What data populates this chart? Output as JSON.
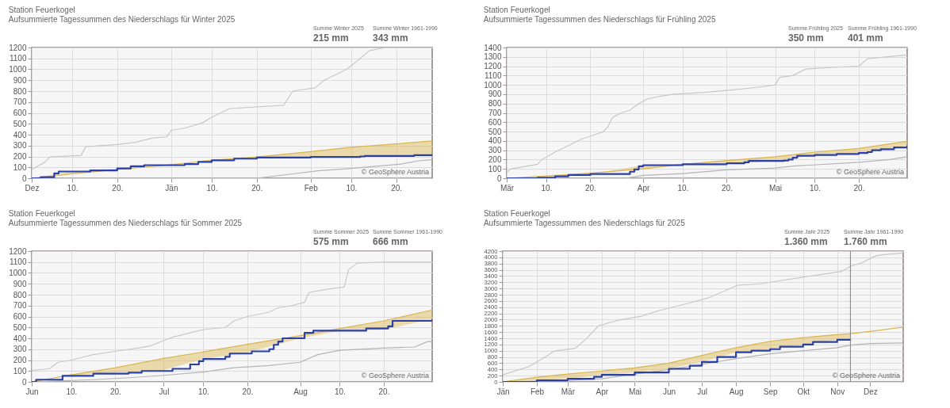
{
  "chart_data": [
    {
      "type": "line",
      "title": "Station Feuerkogel",
      "subtitle": "Aufsummierte Tagessummen des Niederschlags für Winter 2025",
      "annotations": [
        "Summe Winter 2025",
        "215 mm",
        "Summe Winter 1961-1990",
        "343 mm",
        "© GeoSphere Austria"
      ],
      "xlim": [
        "2024-12-01",
        "2025-02-28"
      ],
      "xticks": [
        {
          "value": "2024-12-01",
          "label": "Dez"
        },
        {
          "value": "2024-12-10",
          "label": "10."
        },
        {
          "value": "2024-12-20",
          "label": "20."
        },
        {
          "value": "2025-01-01",
          "label": "Jän"
        },
        {
          "value": "2025-01-10",
          "label": "10."
        },
        {
          "value": "2025-01-20",
          "label": "20."
        },
        {
          "value": "2025-02-01",
          "label": "Feb"
        },
        {
          "value": "2025-02-10",
          "label": "10."
        },
        {
          "value": "2025-02-20",
          "label": "20."
        }
      ],
      "ylim": [
        0,
        1200
      ],
      "yticks": [
        0,
        100,
        200,
        300,
        400,
        500,
        600,
        700,
        800,
        900,
        1000,
        1100,
        1200
      ],
      "grid": true,
      "series": [
        {
          "type": "line",
          "color": "#c8c8c8",
          "x": [
            "2024-12-01",
            "2024-12-04",
            "2024-12-05",
            "2024-12-12",
            "2024-12-13",
            "2024-12-20",
            "2024-12-24",
            "2024-12-28",
            "2024-12-31",
            "2025-01-01",
            "2025-01-04",
            "2025-01-08",
            "2025-01-10",
            "2025-01-14",
            "2025-01-26",
            "2025-01-28",
            "2025-02-02",
            "2025-02-04",
            "2025-02-09",
            "2025-02-12",
            "2025-02-14",
            "2025-02-17"
          ],
          "values": [
            80,
            150,
            195,
            210,
            290,
            310,
            330,
            370,
            380,
            440,
            460,
            510,
            560,
            640,
            670,
            800,
            830,
            900,
            1000,
            1100,
            1170,
            1195
          ]
        },
        {
          "type": "line",
          "color": "#b4b4b4",
          "x": [
            "2024-12-01",
            "2025-01-20",
            "2025-01-28",
            "2025-02-03",
            "2025-02-10",
            "2025-02-21",
            "2025-02-25",
            "2025-02-28"
          ],
          "values": [
            0,
            0,
            40,
            70,
            90,
            130,
            160,
            170
          ]
        },
        {
          "type": "line",
          "color": "#d9b650",
          "x": [
            "2024-12-01",
            "2024-12-10",
            "2024-12-20",
            "2025-01-01",
            "2025-01-10",
            "2025-01-20",
            "2025-02-01",
            "2025-02-10",
            "2025-02-20",
            "2025-02-28"
          ],
          "values": [
            0,
            40,
            80,
            125,
            165,
            195,
            245,
            285,
            315,
            343
          ],
          "lower": [
            0,
            62,
            90,
            120,
            165,
            190,
            195,
            195,
            200,
            215
          ],
          "upper": [
            0,
            40,
            80,
            125,
            165,
            195,
            245,
            285,
            315,
            343
          ]
        },
        {
          "type": "step",
          "color": "#2b3fa8",
          "x": [
            "2024-12-01",
            "2024-12-03",
            "2024-12-06",
            "2024-12-07",
            "2024-12-14",
            "2024-12-20",
            "2024-12-23",
            "2024-12-26",
            "2025-01-04",
            "2025-01-07",
            "2025-01-10",
            "2025-01-15",
            "2025-01-20",
            "2025-02-01",
            "2025-02-12",
            "2025-02-13",
            "2025-02-24",
            "2025-02-28"
          ],
          "values": [
            0,
            10,
            45,
            62,
            72,
            90,
            110,
            120,
            130,
            150,
            165,
            180,
            190,
            195,
            200,
            205,
            212,
            215
          ]
        }
      ]
    },
    {
      "type": "line",
      "title": "Station Feuerkogel",
      "subtitle": "Aufsummierte Tagessummen des Niederschlags für Frühling 2025",
      "annotations": [
        "Summe Frühling 2025",
        "350 mm",
        "Summe Frühling 1961-1990",
        "401 mm",
        "© GeoSphere Austria"
      ],
      "xlim": [
        "2025-03-01",
        "2025-05-31"
      ],
      "xticks": [
        {
          "value": "2025-03-01",
          "label": "Mär"
        },
        {
          "value": "2025-03-10",
          "label": "10."
        },
        {
          "value": "2025-03-20",
          "label": "20."
        },
        {
          "value": "2025-04-01",
          "label": "Apr"
        },
        {
          "value": "2025-04-10",
          "label": "10."
        },
        {
          "value": "2025-04-20",
          "label": "20."
        },
        {
          "value": "2025-05-01",
          "label": "Mai"
        },
        {
          "value": "2025-05-10",
          "label": "10."
        },
        {
          "value": "2025-05-20",
          "label": "20."
        }
      ],
      "ylim": [
        0,
        1400
      ],
      "yticks": [
        0,
        100,
        200,
        300,
        400,
        500,
        600,
        700,
        800,
        900,
        1000,
        1100,
        1200,
        1300,
        1400
      ],
      "grid": true,
      "series": [
        {
          "type": "line",
          "color": "#c8c8c8",
          "x": [
            "2025-03-01",
            "2025-03-02",
            "2025-03-08",
            "2025-03-09",
            "2025-03-12",
            "2025-03-15",
            "2025-03-18",
            "2025-03-20",
            "2025-03-23",
            "2025-03-24",
            "2025-03-25",
            "2025-03-27",
            "2025-03-29",
            "2025-03-31",
            "2025-04-02",
            "2025-04-05",
            "2025-04-08",
            "2025-04-15",
            "2025-04-22",
            "2025-04-28",
            "2025-05-01",
            "2025-05-02",
            "2025-05-05",
            "2025-05-08",
            "2025-05-15",
            "2025-05-20",
            "2025-05-22",
            "2025-05-26",
            "2025-05-31"
          ],
          "values": [
            65,
            100,
            150,
            200,
            280,
            350,
            420,
            450,
            500,
            550,
            650,
            700,
            730,
            800,
            850,
            880,
            900,
            920,
            950,
            980,
            1000,
            1080,
            1100,
            1170,
            1190,
            1200,
            1280,
            1300,
            1320
          ]
        },
        {
          "type": "line",
          "color": "#b4b4b4",
          "x": [
            "2025-03-01",
            "2025-03-28",
            "2025-04-01",
            "2025-04-10",
            "2025-04-20",
            "2025-05-01",
            "2025-05-05",
            "2025-05-20",
            "2025-05-27",
            "2025-05-31"
          ],
          "values": [
            0,
            0,
            30,
            50,
            90,
            110,
            130,
            170,
            200,
            230
          ]
        },
        {
          "type": "line",
          "color": "#d9b650",
          "x": [
            "2025-03-01",
            "2025-03-10",
            "2025-03-20",
            "2025-04-01",
            "2025-04-10",
            "2025-04-20",
            "2025-05-01",
            "2025-05-10",
            "2025-05-20",
            "2025-05-31"
          ],
          "values": [
            0,
            25,
            55,
            100,
            150,
            190,
            230,
            280,
            320,
            395
          ],
          "lower": [
            0,
            5,
            45,
            140,
            150,
            160,
            185,
            250,
            270,
            350
          ],
          "upper": [
            0,
            25,
            55,
            100,
            150,
            190,
            230,
            280,
            320,
            395
          ]
        },
        {
          "type": "step",
          "color": "#2b3fa8",
          "x": [
            "2025-03-01",
            "2025-03-08",
            "2025-03-12",
            "2025-03-15",
            "2025-03-20",
            "2025-03-29",
            "2025-03-30",
            "2025-03-31",
            "2025-04-01",
            "2025-04-10",
            "2025-04-20",
            "2025-04-24",
            "2025-04-25",
            "2025-05-03",
            "2025-05-04",
            "2025-05-05",
            "2025-05-06",
            "2025-05-10",
            "2025-05-15",
            "2025-05-20",
            "2025-05-22",
            "2025-05-23",
            "2025-05-25",
            "2025-05-28",
            "2025-05-31"
          ],
          "values": [
            0,
            5,
            20,
            35,
            45,
            70,
            95,
            128,
            140,
            150,
            160,
            170,
            185,
            190,
            200,
            220,
            240,
            250,
            260,
            270,
            280,
            300,
            310,
            330,
            350
          ]
        }
      ]
    },
    {
      "type": "line",
      "title": "Station Feuerkogel",
      "subtitle": "Aufsummierte Tagessummen des Niederschlags für Sommer 2025",
      "annotations": [
        "Summe Sommer 2025",
        "575 mm",
        "Summe Sommer 1961-1990",
        "666 mm",
        "© GeoSphere Austria"
      ],
      "xlim": [
        "2025-06-01",
        "2025-08-31"
      ],
      "xticks": [
        {
          "value": "2025-06-01",
          "label": "Jun"
        },
        {
          "value": "2025-06-10",
          "label": "10."
        },
        {
          "value": "2025-06-20",
          "label": "20."
        },
        {
          "value": "2025-07-01",
          "label": "Jul"
        },
        {
          "value": "2025-07-10",
          "label": "10."
        },
        {
          "value": "2025-07-20",
          "label": "20."
        },
        {
          "value": "2025-08-01",
          "label": "Aug"
        },
        {
          "value": "2025-08-10",
          "label": "10."
        },
        {
          "value": "2025-08-20",
          "label": "20."
        }
      ],
      "ylim": [
        0,
        1200
      ],
      "yticks": [
        0,
        100,
        200,
        300,
        400,
        500,
        600,
        700,
        800,
        900,
        1000,
        1100,
        1200
      ],
      "grid": true,
      "series": [
        {
          "type": "line",
          "color": "#c8c8c8",
          "x": [
            "2025-06-01",
            "2025-06-05",
            "2025-06-07",
            "2025-06-10",
            "2025-06-15",
            "2025-06-20",
            "2025-06-25",
            "2025-06-28",
            "2025-07-01",
            "2025-07-03",
            "2025-07-07",
            "2025-07-10",
            "2025-07-15",
            "2025-07-17",
            "2025-07-20",
            "2025-07-25",
            "2025-07-27",
            "2025-07-30",
            "2025-08-02",
            "2025-08-03",
            "2025-08-07",
            "2025-08-11",
            "2025-08-12",
            "2025-08-14",
            "2025-08-20",
            "2025-08-31"
          ],
          "values": [
            105,
            120,
            180,
            200,
            250,
            280,
            310,
            330,
            380,
            410,
            450,
            480,
            500,
            560,
            600,
            640,
            680,
            700,
            730,
            820,
            850,
            870,
            1030,
            1090,
            1100,
            1100
          ]
        },
        {
          "type": "line",
          "color": "#b4b4b4",
          "x": [
            "2025-06-01",
            "2025-06-15",
            "2025-06-24",
            "2025-07-01",
            "2025-07-10",
            "2025-07-17",
            "2025-07-25",
            "2025-08-01",
            "2025-08-05",
            "2025-08-10",
            "2025-08-20",
            "2025-08-27",
            "2025-08-30",
            "2025-08-31"
          ],
          "values": [
            0,
            20,
            40,
            60,
            90,
            130,
            150,
            180,
            250,
            290,
            310,
            320,
            370,
            370
          ]
        },
        {
          "type": "line",
          "color": "#d9b650",
          "x": [
            "2025-06-01",
            "2025-06-10",
            "2025-06-20",
            "2025-07-01",
            "2025-07-10",
            "2025-07-20",
            "2025-08-01",
            "2025-08-10",
            "2025-08-20",
            "2025-08-31"
          ],
          "values": [
            0,
            65,
            130,
            215,
            275,
            345,
            425,
            490,
            560,
            660
          ],
          "lower": [
            0,
            60,
            85,
            110,
            210,
            270,
            400,
            470,
            480,
            575
          ],
          "upper": [
            0,
            65,
            130,
            215,
            275,
            345,
            425,
            490,
            560,
            660
          ]
        },
        {
          "type": "step",
          "color": "#2b3fa8",
          "x": [
            "2025-06-01",
            "2025-06-02",
            "2025-06-08",
            "2025-06-15",
            "2025-06-23",
            "2025-06-26",
            "2025-07-03",
            "2025-07-07",
            "2025-07-09",
            "2025-07-10",
            "2025-07-15",
            "2025-07-16",
            "2025-07-21",
            "2025-07-25",
            "2025-07-26",
            "2025-07-27",
            "2025-07-28",
            "2025-08-02",
            "2025-08-04",
            "2025-08-16",
            "2025-08-21",
            "2025-08-22",
            "2025-08-31"
          ],
          "values": [
            0,
            20,
            55,
            75,
            85,
            100,
            120,
            160,
            190,
            210,
            230,
            260,
            280,
            300,
            340,
            370,
            400,
            450,
            470,
            490,
            510,
            560,
            575
          ]
        }
      ]
    },
    {
      "type": "line",
      "title": "Station Feuerkogel",
      "subtitle": "Aufsummierte Tagessummen des Niederschlags für 2025",
      "annotations": [
        "Summe Jahr 2025",
        "1.360 mm",
        "Summe Jahr 1961-1990",
        "1.760 mm",
        "© GeoSphere Austria"
      ],
      "xlim": [
        "2025-01-01",
        "2025-12-31"
      ],
      "xticks": [
        {
          "value": "2025-01-01",
          "label": "Jän"
        },
        {
          "value": "2025-02-01",
          "label": "Feb"
        },
        {
          "value": "2025-03-01",
          "label": "Mär"
        },
        {
          "value": "2025-04-01",
          "label": "Apr"
        },
        {
          "value": "2025-05-01",
          "label": "Mai"
        },
        {
          "value": "2025-06-01",
          "label": "Jun"
        },
        {
          "value": "2025-07-01",
          "label": "Jul"
        },
        {
          "value": "2025-08-01",
          "label": "Aug"
        },
        {
          "value": "2025-09-01",
          "label": "Sep"
        },
        {
          "value": "2025-10-01",
          "label": "Okt"
        },
        {
          "value": "2025-11-01",
          "label": "Nov"
        },
        {
          "value": "2025-12-01",
          "label": "Dez"
        }
      ],
      "ylim": [
        0,
        4200
      ],
      "yticks": [
        0,
        200,
        400,
        600,
        800,
        1000,
        1200,
        1400,
        1600,
        1800,
        2000,
        2200,
        2400,
        2600,
        2800,
        3000,
        3200,
        3400,
        3600,
        3800,
        4000,
        4200
      ],
      "grid": true,
      "ref_lines": [
        {
          "axis": "x",
          "value": "2025-11-13",
          "color": "#808080"
        }
      ],
      "series": [
        {
          "type": "line",
          "color": "#c8c8c8",
          "x": [
            "2025-01-01",
            "2025-01-25",
            "2025-02-07",
            "2025-02-17",
            "2025-03-08",
            "2025-03-18",
            "2025-03-29",
            "2025-04-16",
            "2025-05-07",
            "2025-05-23",
            "2025-06-18",
            "2025-07-07",
            "2025-07-25",
            "2025-08-02",
            "2025-08-23",
            "2025-10-02",
            "2025-11-05",
            "2025-11-14",
            "2025-11-23",
            "2025-12-06",
            "2025-12-14",
            "2025-12-31"
          ],
          "values": [
            225,
            495,
            765,
            990,
            1080,
            1390,
            1800,
            1980,
            2110,
            2290,
            2520,
            2700,
            2970,
            3100,
            3150,
            3370,
            3550,
            3730,
            3820,
            4050,
            4090,
            4140
          ]
        },
        {
          "type": "line",
          "color": "#b4b4b4",
          "x": [
            "2025-01-01",
            "2025-03-01",
            "2025-04-01",
            "2025-05-01",
            "2025-06-01",
            "2025-07-01",
            "2025-08-01",
            "2025-09-01",
            "2025-10-01",
            "2025-11-01",
            "2025-11-13",
            "2025-12-01",
            "2025-12-31"
          ],
          "values": [
            0,
            50,
            100,
            250,
            400,
            560,
            750,
            900,
            1000,
            1100,
            1180,
            1230,
            1250
          ]
        },
        {
          "type": "line",
          "color": "#d9b650",
          "x": [
            "2025-01-01",
            "2025-02-01",
            "2025-03-01",
            "2025-04-01",
            "2025-05-01",
            "2025-06-01",
            "2025-07-01",
            "2025-08-01",
            "2025-09-01",
            "2025-10-01",
            "2025-11-01",
            "2025-11-13",
            "2025-12-01",
            "2025-12-31"
          ],
          "values": [
            0,
            150,
            250,
            350,
            450,
            600,
            850,
            1100,
            1300,
            1420,
            1520,
            1550,
            1620,
            1760
          ],
          "lower": [
            0,
            50,
            100,
            225,
            300,
            420,
            640,
            950,
            1050,
            1200,
            1350,
            1360,
            null,
            null
          ],
          "upper": [
            0,
            150,
            250,
            350,
            450,
            600,
            850,
            1100,
            1300,
            1420,
            1520,
            1550,
            null,
            null
          ]
        },
        {
          "type": "step",
          "color": "#2b3fa8",
          "x": [
            "2025-01-01",
            "2025-02-01",
            "2025-03-01",
            "2025-03-25",
            "2025-04-01",
            "2025-05-01",
            "2025-06-01",
            "2025-06-20",
            "2025-07-01",
            "2025-07-15",
            "2025-08-01",
            "2025-08-15",
            "2025-09-01",
            "2025-09-10",
            "2025-10-01",
            "2025-10-10",
            "2025-11-01",
            "2025-11-13"
          ],
          "values": [
            0,
            50,
            100,
            160,
            225,
            300,
            420,
            520,
            640,
            800,
            950,
            1000,
            1050,
            1130,
            1200,
            1280,
            1350,
            1360
          ]
        }
      ]
    }
  ]
}
